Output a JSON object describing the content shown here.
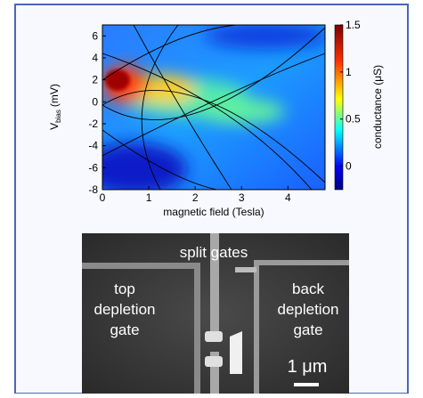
{
  "heatmap": {
    "x_label": "magnetic field (Tesla)",
    "y_label": {
      "main": "V",
      "sub": "bias",
      "unit": "(mV)"
    },
    "colorbar_label": "conductance (μS)",
    "xlim": [
      0,
      4.8
    ],
    "xticks": [
      0,
      1,
      2,
      3,
      4
    ],
    "ylim": [
      -8,
      7
    ],
    "yticks": [
      -8,
      -6,
      -4,
      -2,
      0,
      2,
      4,
      6
    ],
    "clim": [
      -0.25,
      1.5
    ],
    "cticks": [
      0,
      0.5,
      1,
      1.5
    ]
  },
  "micrograph": {
    "split_label": "split gates",
    "left_label": [
      "top",
      "depletion",
      "gate"
    ],
    "right_label": [
      "back",
      "depletion",
      "gate"
    ],
    "scale_label": "1 μm"
  }
}
